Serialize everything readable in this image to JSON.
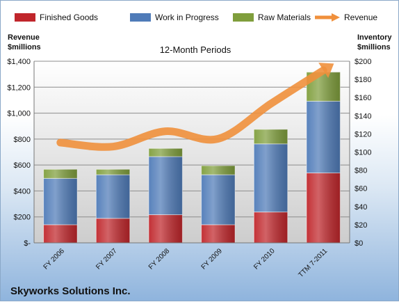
{
  "chart_data": {
    "type": "bar",
    "title": "12-Month Periods",
    "company": "Skyworks Solutions Inc.",
    "left_axis_label": [
      "Revenue",
      "$millions"
    ],
    "right_axis_label": [
      "Inventory",
      "$millions"
    ],
    "categories": [
      "FY 2006",
      "FY 2007",
      "FY 2008",
      "FY 2009",
      "FY 2010",
      "TTM 7-2011"
    ],
    "left_ylim": [
      0,
      1400
    ],
    "right_ylim": [
      0,
      200
    ],
    "left_ticks": [
      "$-",
      "$200",
      "$400",
      "$600",
      "$800",
      "$1,000",
      "$1,200",
      "$1,400"
    ],
    "right_ticks": [
      "$0",
      "$20",
      "$40",
      "$60",
      "$80",
      "$100",
      "$120",
      "$140",
      "$160",
      "$180",
      "$200"
    ],
    "grid": true,
    "legend_position": "top",
    "series": [
      {
        "name": "Finished Goods",
        "axis": "right",
        "kind": "stacked-bar",
        "color": "#c0262b",
        "values": [
          20,
          27,
          31,
          20,
          34,
          77
        ]
      },
      {
        "name": "Work in Progress",
        "axis": "right",
        "kind": "stacked-bar",
        "color": "#4f7bb8",
        "values": [
          51,
          48,
          64,
          55,
          75,
          79
        ]
      },
      {
        "name": "Raw Materials",
        "axis": "right",
        "kind": "stacked-bar",
        "color": "#7f9e3c",
        "values": [
          10,
          6,
          9,
          10,
          16,
          32
        ]
      },
      {
        "name": "Revenue",
        "axis": "left",
        "kind": "line",
        "color": "#f0903c",
        "values": [
          773,
          742,
          860,
          802,
          1072,
          1330
        ]
      }
    ]
  }
}
